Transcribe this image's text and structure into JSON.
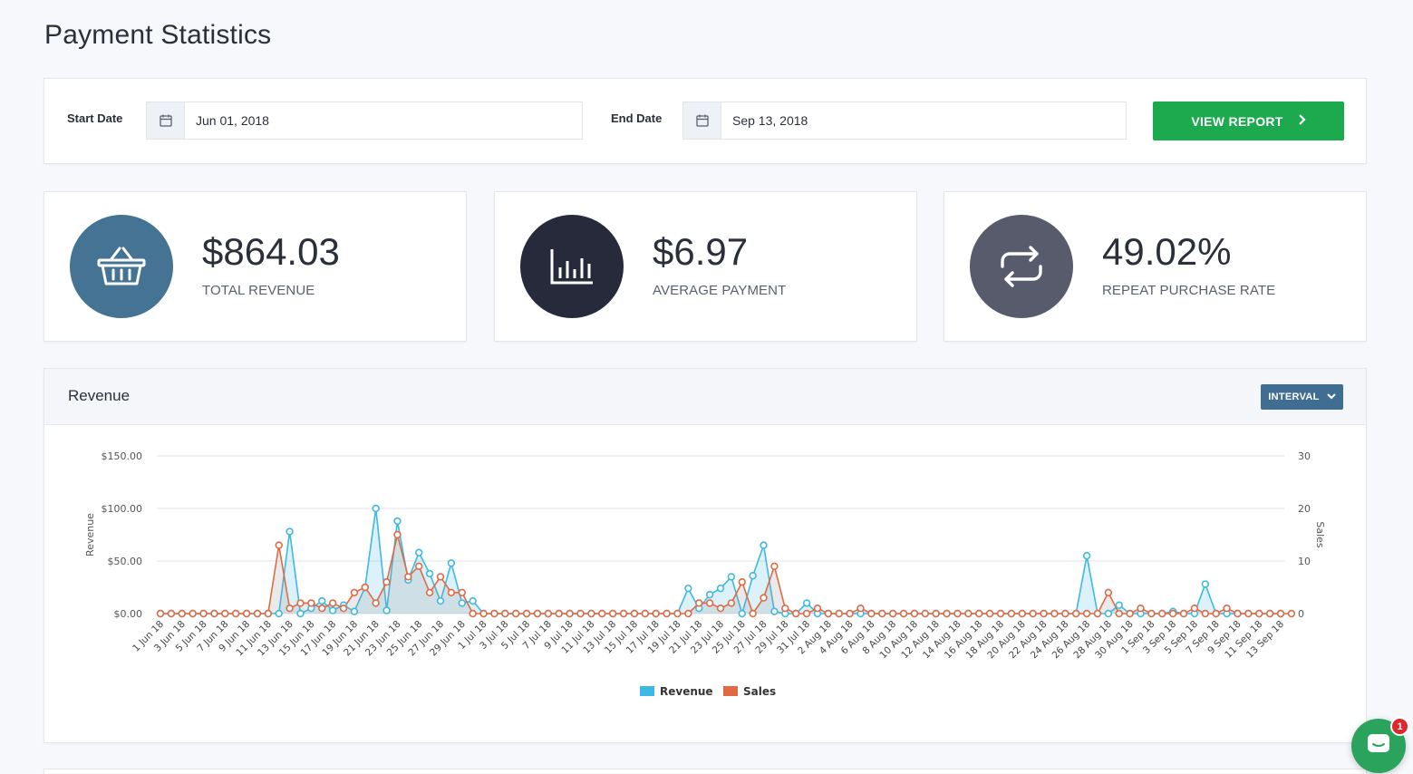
{
  "page": {
    "title": "Payment Statistics"
  },
  "filters": {
    "start_label": "Start Date",
    "start_value": "Jun 01, 2018",
    "end_label": "End Date",
    "end_value": "Sep 13, 2018",
    "view_report_label": "VIEW REPORT",
    "calendar_icon": "calendar-icon"
  },
  "stats": [
    {
      "value": "$864.03",
      "label": "TOTAL REVENUE",
      "icon": "basket-icon",
      "color": "#457394"
    },
    {
      "value": "$6.97",
      "label": "AVERAGE PAYMENT",
      "icon": "bar-chart-icon",
      "color": "#262a3b"
    },
    {
      "value": "49.02%",
      "label": "REPEAT PURCHASE RATE",
      "icon": "repeat-icon",
      "color": "#575b6c"
    }
  ],
  "revenue_panel": {
    "title": "Revenue",
    "interval_label": "INTERVAL"
  },
  "chat": {
    "badge": "1"
  },
  "chart_data": {
    "type": "line",
    "ylabel": "Revenue",
    "y2label": "Sales",
    "ylim": [
      0,
      150
    ],
    "y2lim": [
      0,
      30
    ],
    "y_ticks": [
      "$0.00",
      "$50.00",
      "$100.00",
      "$150.00"
    ],
    "y2_ticks": [
      "0",
      "10",
      "20",
      "30"
    ],
    "legend_position": "bottom-center",
    "grid": true,
    "x_tick_labels": [
      "1 Jun 18",
      "3 Jun 18",
      "5 Jun 18",
      "7 Jun 18",
      "9 Jun 18",
      "11 Jun 18",
      "13 Jun 18",
      "15 Jun 18",
      "17 Jun 18",
      "19 Jun 18",
      "21 Jun 18",
      "23 Jun 18",
      "25 Jun 18",
      "27 Jun 18",
      "29 Jun 18",
      "1 Jul 18",
      "3 Jul 18",
      "5 Jul 18",
      "7 Jul 18",
      "9 Jul 18",
      "11 Jul 18",
      "13 Jul 18",
      "15 Jul 18",
      "17 Jul 18",
      "19 Jul 18",
      "21 Jul 18",
      "23 Jul 18",
      "25 Jul 18",
      "27 Jul 18",
      "29 Jul 18",
      "31 Jul 18",
      "2 Aug 18",
      "4 Aug 18",
      "6 Aug 18",
      "8 Aug 18",
      "10 Aug 18",
      "12 Aug 18",
      "14 Aug 18",
      "16 Aug 18",
      "18 Aug 18",
      "20 Aug 18",
      "22 Aug 18",
      "24 Aug 18",
      "26 Aug 18",
      "28 Aug 18",
      "30 Aug 18",
      "1 Sep 18",
      "3 Sep 18",
      "5 Sep 18",
      "7 Sep 18",
      "9 Sep 18",
      "11 Sep 18",
      "13 Sep 18"
    ],
    "series": [
      {
        "name": "Revenue",
        "axis": "left",
        "color": "#3db9e3",
        "values": [
          0,
          0,
          0,
          0,
          0,
          0,
          0,
          0,
          0,
          0,
          0,
          0,
          78,
          0,
          5,
          12,
          3,
          8,
          2,
          25,
          100,
          3,
          88,
          32,
          58,
          38,
          12,
          48,
          10,
          12,
          0,
          0,
          0,
          0,
          0,
          0,
          0,
          0,
          0,
          0,
          0,
          0,
          0,
          0,
          0,
          0,
          0,
          0,
          0,
          24,
          5,
          18,
          24,
          35,
          0,
          36,
          65,
          2,
          0,
          0,
          10,
          0,
          0,
          0,
          0,
          0,
          0,
          0,
          0,
          0,
          0,
          0,
          0,
          0,
          0,
          0,
          0,
          0,
          0,
          0,
          0,
          0,
          0,
          0,
          0,
          0,
          55,
          0,
          0,
          8,
          0,
          0,
          0,
          0,
          2,
          0,
          0,
          28,
          0,
          0,
          0,
          0,
          0,
          0,
          0
        ]
      },
      {
        "name": "Sales",
        "axis": "right",
        "color": "#e06a44",
        "values": [
          0,
          0,
          0,
          0,
          0,
          0,
          0,
          0,
          0,
          0,
          0,
          13,
          1,
          2,
          2,
          1,
          2,
          1,
          4,
          5,
          2,
          6,
          15,
          7,
          9,
          4,
          7,
          4,
          4,
          0,
          0,
          0,
          0,
          0,
          0,
          0,
          0,
          0,
          0,
          0,
          0,
          0,
          0,
          0,
          0,
          0,
          0,
          0,
          0,
          0,
          2,
          2,
          1,
          2,
          6,
          0,
          3,
          9,
          1,
          0,
          0,
          1,
          0,
          0,
          0,
          1,
          0,
          0,
          0,
          0,
          0,
          0,
          0,
          0,
          0,
          0,
          0,
          0,
          0,
          0,
          0,
          0,
          0,
          0,
          0,
          0,
          0,
          0,
          4,
          0,
          0,
          1,
          0,
          0,
          0,
          0,
          1,
          0,
          0,
          1,
          0,
          0,
          0,
          0,
          0,
          0
        ]
      }
    ]
  }
}
